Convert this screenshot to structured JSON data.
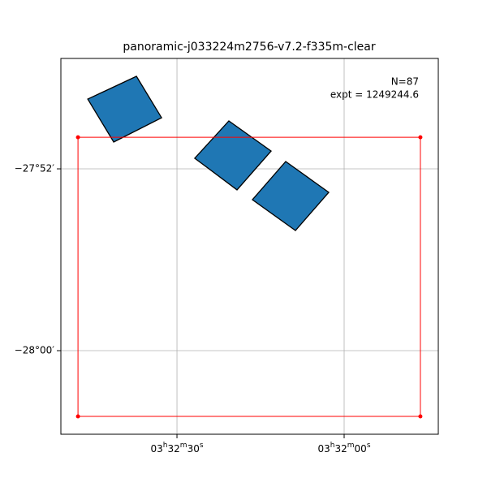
{
  "chart_data": {
    "type": "footprint",
    "title": "panoramic-j033224m2756-v7.2-f335m-clear",
    "annotations": [
      "N=87",
      "expt = 1249244.6"
    ],
    "xlim": [
      53.2118,
      52.9296
    ],
    "ylim": [
      -28.0613,
      -27.7857
    ],
    "xticks": [
      {
        "value": 53.125,
        "label": "03h32m30s"
      },
      {
        "value": 53.0,
        "label": "03h32m00s"
      }
    ],
    "yticks": [
      {
        "value": -27.866667,
        "label": "−27°52′"
      },
      {
        "value": -28.0,
        "label": "−28°00′"
      }
    ],
    "grid": true,
    "color": "#1f77b4",
    "outline_color": "#ff0000",
    "outline": {
      "ra": [
        53.199,
        52.943,
        52.943,
        53.199
      ],
      "dec": [
        -27.8435,
        -27.8435,
        -28.0482,
        -28.0482
      ]
    },
    "footprints": [
      {
        "ra": [
          53.1917,
          53.1553,
          53.1365,
          53.1723
        ],
        "dec": [
          -27.8155,
          -27.7988,
          -27.8292,
          -27.847
        ]
      },
      {
        "ra": [
          53.1117,
          53.0862,
          53.0546,
          53.0801
        ],
        "dec": [
          -27.8589,
          -27.8315,
          -27.8536,
          -27.8821
        ]
      },
      {
        "ra": [
          53.0686,
          53.0437,
          53.0115,
          53.0364
        ],
        "dec": [
          -27.8893,
          -27.8613,
          -27.8839,
          -27.9119
        ]
      }
    ]
  }
}
